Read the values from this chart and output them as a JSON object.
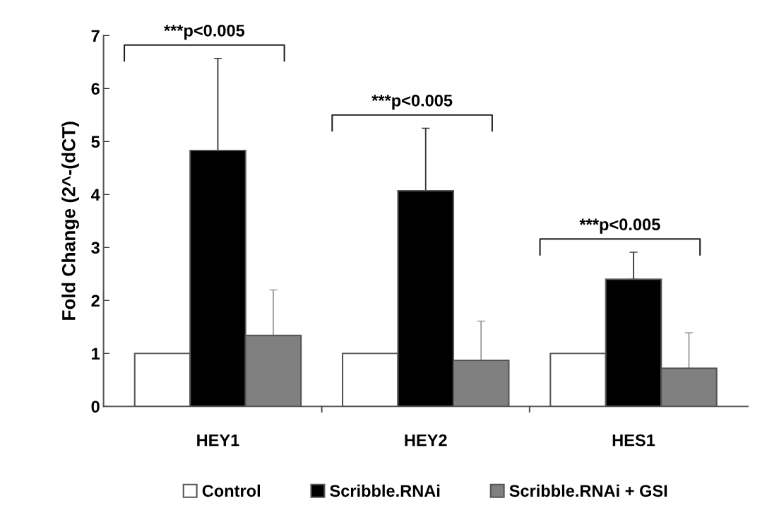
{
  "chart_data": {
    "type": "bar",
    "ylabel": "Fold Change (2^-(dCT)",
    "categories": [
      "HEY1",
      "HEY2",
      "HES1"
    ],
    "series": [
      {
        "name": "Control",
        "color": "#ffffff",
        "values": [
          1,
          1,
          1
        ]
      },
      {
        "name": "Scribble.RNAi",
        "color": "#000000",
        "values": [
          4.83,
          4.07,
          2.4
        ],
        "errors": [
          [
            4.83,
            6.57
          ],
          [
            4.07,
            5.25
          ],
          [
            2.4,
            2.91
          ]
        ]
      },
      {
        "name": "Scribble.RNAi + GSI",
        "color": "#808080",
        "values": [
          1.34,
          0.87,
          0.72
        ],
        "errors": [
          [
            1.34,
            2.2
          ],
          [
            0.87,
            1.61
          ],
          [
            0.72,
            1.39
          ]
        ]
      }
    ],
    "ylim": [
      0,
      7
    ],
    "yticks": [
      0,
      1,
      2,
      3,
      4,
      5,
      6,
      7
    ],
    "grid": false,
    "legend": "bottom",
    "annotations": [
      "***p<0.005",
      "***p<0.005",
      "***p<0.005"
    ]
  }
}
